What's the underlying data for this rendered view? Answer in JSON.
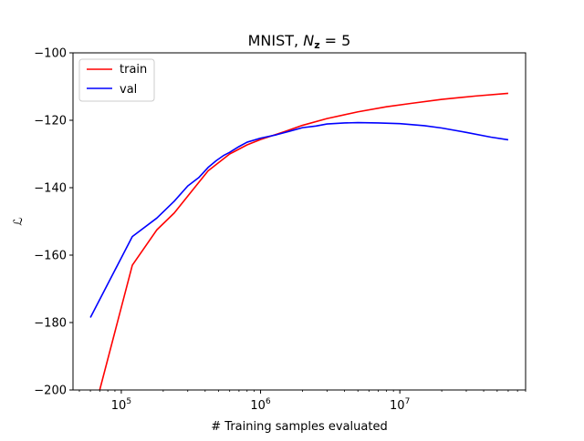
{
  "chart_data": {
    "type": "line",
    "title_prefix": "MNIST, ",
    "title_var": "N",
    "title_sub": "z",
    "title_suffix": " = 5",
    "xlabel": "# Training samples evaluated",
    "ylabel": "ℒ",
    "xscale": "log",
    "xlim": [
      45000,
      80000000
    ],
    "ylim": [
      -200,
      -100
    ],
    "xticks": [
      {
        "value": 100000,
        "base": "10",
        "exp": "5"
      },
      {
        "value": 1000000,
        "base": "10",
        "exp": "6"
      },
      {
        "value": 10000000,
        "base": "10",
        "exp": "7"
      }
    ],
    "yticks": [
      -200,
      -180,
      -160,
      -140,
      -120,
      -100
    ],
    "grid": false,
    "legend_position": "top-left",
    "series": [
      {
        "name": "train",
        "color": "#ff0000",
        "points": [
          [
            60000,
            -220
          ],
          [
            70000,
            -200
          ],
          [
            120000,
            -163
          ],
          [
            180000,
            -152.5
          ],
          [
            240000,
            -147.5
          ],
          [
            300000,
            -142.5
          ],
          [
            420000,
            -135
          ],
          [
            600000,
            -130
          ],
          [
            800000,
            -127.3
          ],
          [
            1000000,
            -125.7
          ],
          [
            1500000,
            -123.3
          ],
          [
            2000000,
            -121.5
          ],
          [
            3000000,
            -119.5
          ],
          [
            5000000,
            -117.5
          ],
          [
            8000000,
            -116
          ],
          [
            12000000,
            -115
          ],
          [
            20000000,
            -113.8
          ],
          [
            35000000,
            -112.8
          ],
          [
            60000000,
            -112
          ]
        ]
      },
      {
        "name": "val",
        "color": "#0000ff",
        "points": [
          [
            60000,
            -178.5
          ],
          [
            120000,
            -154.5
          ],
          [
            180000,
            -149
          ],
          [
            240000,
            -144
          ],
          [
            300000,
            -139.5
          ],
          [
            360000,
            -137
          ],
          [
            420000,
            -134
          ],
          [
            480000,
            -132
          ],
          [
            540000,
            -130.5
          ],
          [
            600000,
            -129.5
          ],
          [
            700000,
            -127.8
          ],
          [
            800000,
            -126.5
          ],
          [
            1000000,
            -125.3
          ],
          [
            1300000,
            -124.3
          ],
          [
            1600000,
            -123.3
          ],
          [
            2000000,
            -122.2
          ],
          [
            2500000,
            -121.7
          ],
          [
            3000000,
            -121.1
          ],
          [
            4000000,
            -120.8
          ],
          [
            5000000,
            -120.7
          ],
          [
            7000000,
            -120.8
          ],
          [
            10000000,
            -121
          ],
          [
            15000000,
            -121.6
          ],
          [
            20000000,
            -122.3
          ],
          [
            30000000,
            -123.6
          ],
          [
            45000000,
            -125
          ],
          [
            60000000,
            -125.8
          ]
        ]
      }
    ]
  }
}
